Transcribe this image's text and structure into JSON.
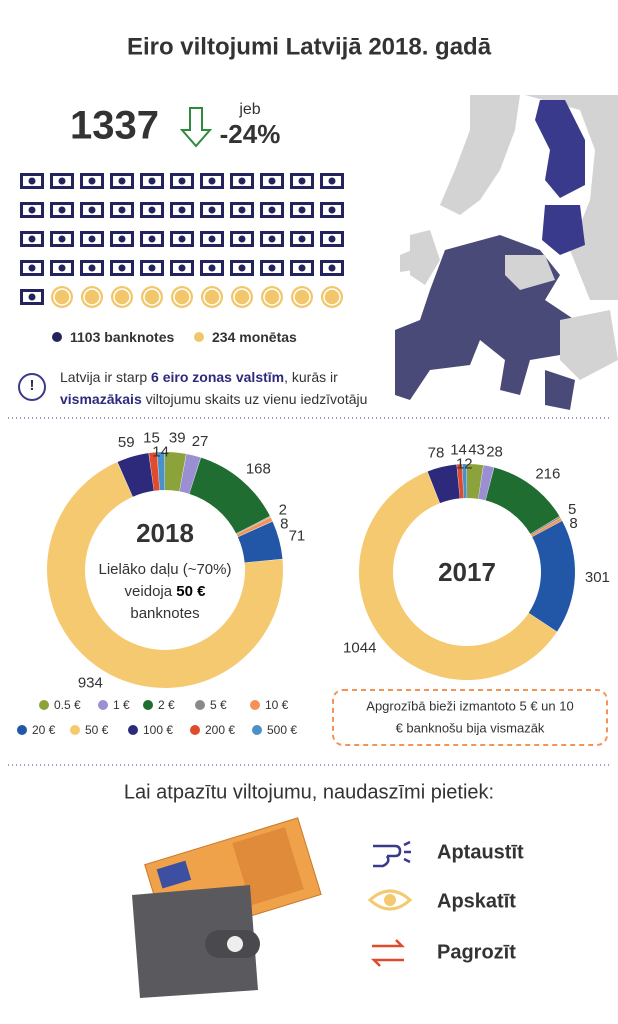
{
  "title": "Eiro viltojumi Latvijā 2018. gadā",
  "summary": {
    "total": 1337,
    "conjunction": "jeb",
    "change": "-24%"
  },
  "composition": {
    "banknotes": {
      "value": 1103,
      "label": "banknotes",
      "color": "#23235e"
    },
    "coins": {
      "value": 234,
      "label": "monētas",
      "color": "#f2c76b"
    }
  },
  "info": {
    "lines": [
      [
        {
          "t": "Latvija ir starp "
        },
        {
          "t": "6 eiro zonas valstīm",
          "b": true
        },
        {
          "t": ", kurās ir"
        }
      ],
      [
        {
          "t": "vismazākais",
          "b": true
        },
        {
          "t": " viltojumu skaits uz vienu iedzīvotāju"
        }
      ]
    ]
  },
  "chart_data": [
    {
      "type": "donut",
      "title": "2018",
      "categories": [
        "0.5 €",
        "1 €",
        "2 €",
        "5 €",
        "10 €",
        "20 €",
        "50 €",
        "100 €",
        "200 €",
        "500 €"
      ],
      "colors": [
        "#8ca33c",
        "#9a8fd2",
        "#1f6d30",
        "#8a8a8a",
        "#f29458",
        "#2257a8",
        "#f5c96f",
        "#2d2a7c",
        "#e04b2b",
        "#4b91c9"
      ],
      "values": [
        39,
        27,
        168,
        2,
        8,
        71,
        934,
        59,
        15,
        14
      ],
      "annotation": [
        [
          {
            "t": "Lielāko daļu (~70%)"
          }
        ],
        [
          {
            "t": "veidoja "
          },
          {
            "t": "50 €",
            "b": true
          }
        ],
        [
          {
            "t": "banknotes"
          }
        ]
      ]
    },
    {
      "type": "donut",
      "title": "2017",
      "values": [
        43,
        28,
        216,
        5,
        8,
        301,
        1044,
        78,
        14,
        12
      ]
    }
  ],
  "comparison_note": [
    "Apgrozībā bieži izmantoto 5 € un 10",
    "€ banknošu bija vismazāk"
  ],
  "recognize": {
    "heading": "Lai atpazītu viltojumu, naudaszīmi pietiek:",
    "actions": [
      "Aptaustīt",
      "Apskatīt",
      "Pagrozīt"
    ]
  }
}
